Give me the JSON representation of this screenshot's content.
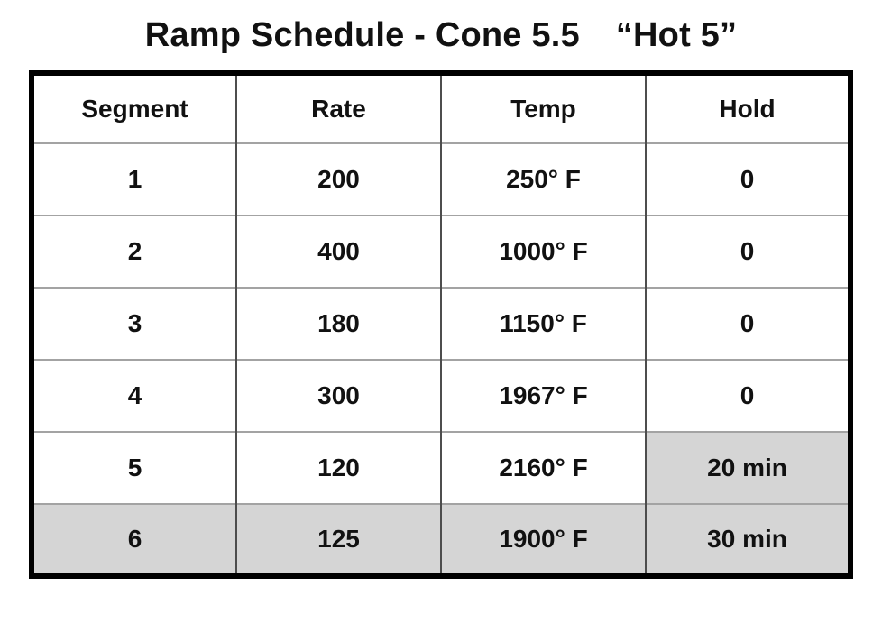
{
  "title": {
    "main": "Ramp Schedule - Cone 5.5",
    "nickname": "“Hot 5”"
  },
  "table": {
    "headers": [
      "Segment",
      "Rate",
      "Temp",
      "Hold"
    ],
    "rows": [
      {
        "segment": "1",
        "rate": "200",
        "temp": "250° F",
        "hold": "0",
        "highlighted": "none"
      },
      {
        "segment": "2",
        "rate": "400",
        "temp": "1000° F",
        "hold": "0",
        "highlighted": "none"
      },
      {
        "segment": "3",
        "rate": "180",
        "temp": "1150° F",
        "hold": "0",
        "highlighted": "none"
      },
      {
        "segment": "4",
        "rate": "300",
        "temp": "1967° F",
        "hold": "0",
        "highlighted": "none"
      },
      {
        "segment": "5",
        "rate": "120",
        "temp": "2160° F",
        "hold": "20 min",
        "highlighted": "hold-cell"
      },
      {
        "segment": "6",
        "rate": "125",
        "temp": "1900° F",
        "hold": "30 min",
        "highlighted": "entire-row"
      }
    ]
  },
  "colors": {
    "background": "#ffffff",
    "text": "#111111",
    "outer-border": "#000000",
    "grid-vertical": "#4d4d4d",
    "grid-horizontal": "#a3a3a3",
    "highlight": "#d5d5d5"
  }
}
